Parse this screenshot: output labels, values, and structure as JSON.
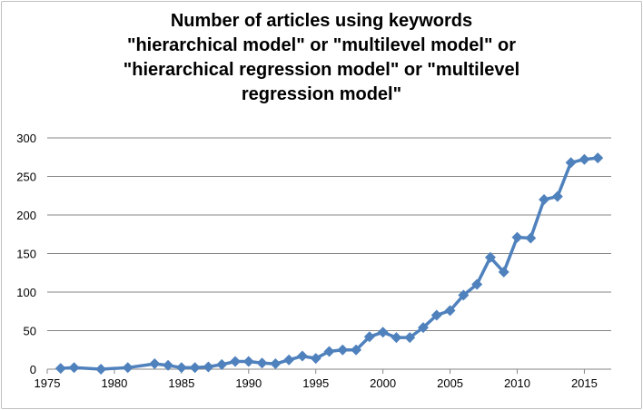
{
  "chart_data": {
    "type": "line",
    "title_lines": [
      "Number of articles using keywords",
      "\"hierarchical model\" or \"multilevel model\" or",
      "\"hierarchical regression model\" or \"multilevel",
      "regression model\""
    ],
    "xlabel": "",
    "ylabel": "",
    "xlim": [
      1975,
      2017
    ],
    "ylim": [
      0,
      300
    ],
    "x_ticks": [
      1975,
      1980,
      1985,
      1990,
      1995,
      2000,
      2005,
      2010,
      2015
    ],
    "y_ticks": [
      0,
      50,
      100,
      150,
      200,
      250,
      300
    ],
    "grid": "horizontal",
    "legend": "none",
    "series": [
      {
        "color": "#4f81bd",
        "marker": "diamond",
        "points": [
          [
            1976,
            1
          ],
          [
            1977,
            2
          ],
          [
            1979,
            0
          ],
          [
            1981,
            2
          ],
          [
            1983,
            7
          ],
          [
            1984,
            5
          ],
          [
            1985,
            2
          ],
          [
            1986,
            2
          ],
          [
            1987,
            3
          ],
          [
            1988,
            6
          ],
          [
            1989,
            10
          ],
          [
            1990,
            10
          ],
          [
            1991,
            8
          ],
          [
            1992,
            7
          ],
          [
            1993,
            12
          ],
          [
            1994,
            17
          ],
          [
            1995,
            14
          ],
          [
            1996,
            23
          ],
          [
            1997,
            25
          ],
          [
            1998,
            25
          ],
          [
            1999,
            42
          ],
          [
            2000,
            48
          ],
          [
            2001,
            41
          ],
          [
            2002,
            41
          ],
          [
            2003,
            54
          ],
          [
            2004,
            70
          ],
          [
            2005,
            76
          ],
          [
            2006,
            96
          ],
          [
            2007,
            110
          ],
          [
            2008,
            145
          ],
          [
            2009,
            126
          ],
          [
            2010,
            171
          ],
          [
            2011,
            170
          ],
          [
            2012,
            220
          ],
          [
            2013,
            224
          ],
          [
            2014,
            268
          ],
          [
            2015,
            272
          ],
          [
            2016,
            274
          ]
        ]
      }
    ]
  }
}
